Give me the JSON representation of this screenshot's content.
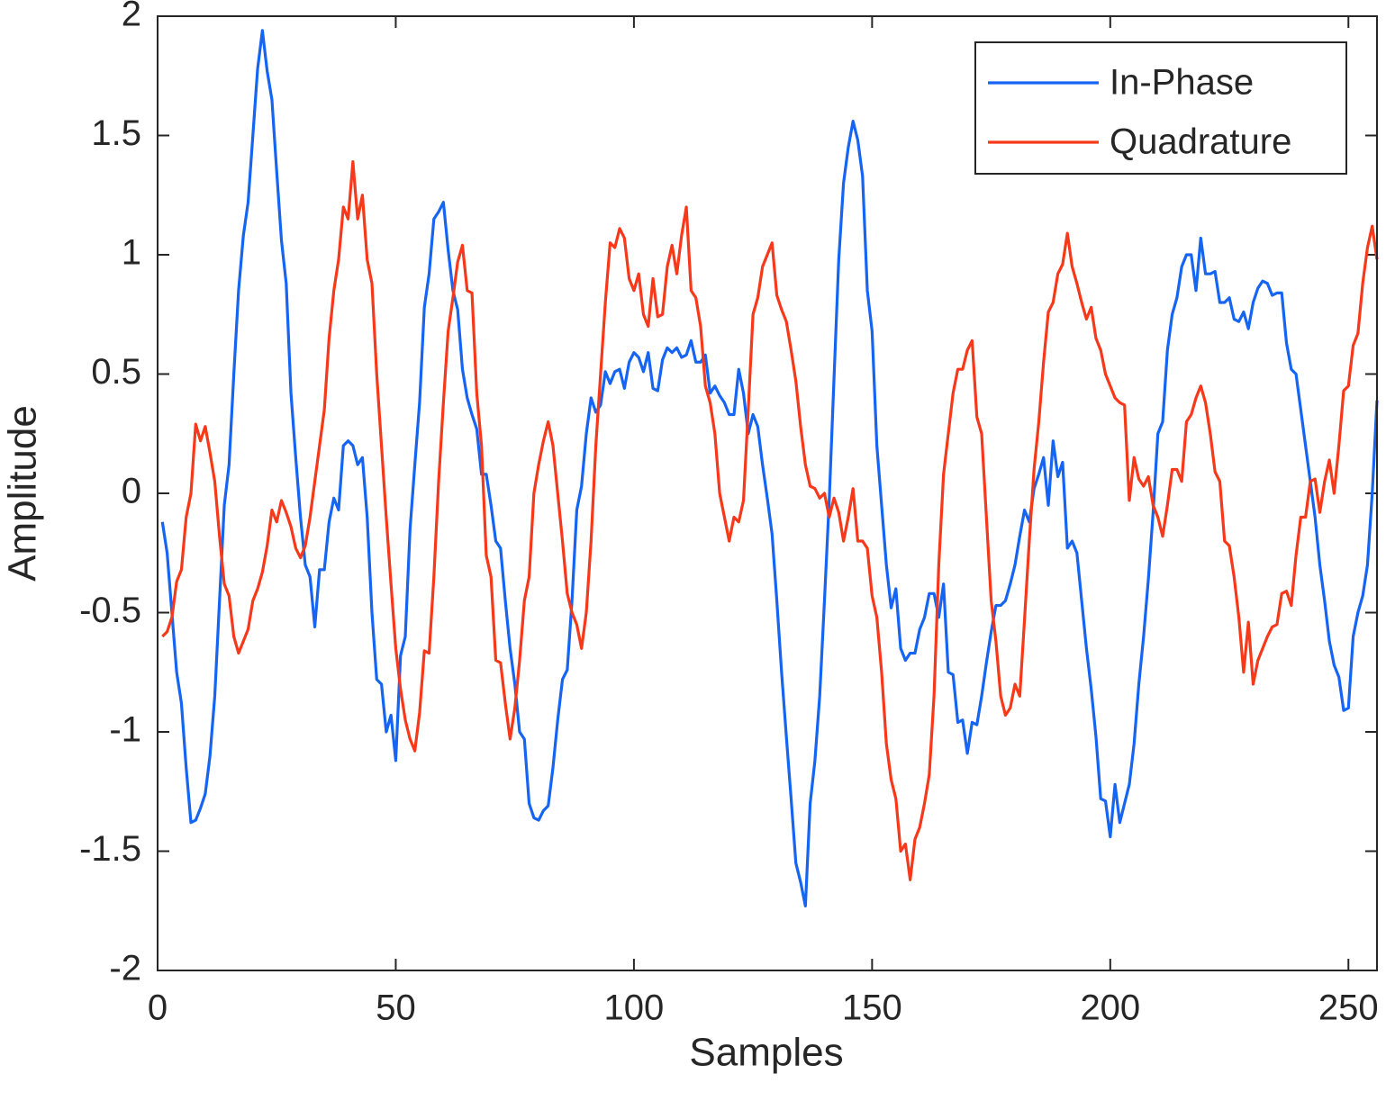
{
  "chart_data": {
    "type": "line",
    "xlabel": "Samples",
    "ylabel": "Amplitude",
    "legend": "northeast",
    "box": true,
    "xlim": [
      0,
      256
    ],
    "ylim": [
      -2,
      2
    ],
    "xticks": [
      0,
      50,
      100,
      150,
      200,
      250
    ],
    "yticks": [
      -2,
      -1.5,
      -1,
      -0.5,
      0,
      0.5,
      1,
      1.5,
      2
    ],
    "x": [
      1,
      2,
      3,
      4,
      5,
      6,
      7,
      8,
      9,
      10,
      11,
      12,
      13,
      14,
      15,
      16,
      17,
      18,
      19,
      20,
      21,
      22,
      23,
      24,
      25,
      26,
      27,
      28,
      29,
      30,
      31,
      32,
      33,
      34,
      35,
      36,
      37,
      38,
      39,
      40,
      41,
      42,
      43,
      44,
      45,
      46,
      47,
      48,
      49,
      50,
      51,
      52,
      53,
      54,
      55,
      56,
      57,
      58,
      59,
      60,
      61,
      62,
      63,
      64,
      65,
      66,
      67,
      68,
      69,
      70,
      71,
      72,
      73,
      74,
      75,
      76,
      77,
      78,
      79,
      80,
      81,
      82,
      83,
      84,
      85,
      86,
      87,
      88,
      89,
      90,
      91,
      92,
      93,
      94,
      95,
      96,
      97,
      98,
      99,
      100,
      101,
      102,
      103,
      104,
      105,
      106,
      107,
      108,
      109,
      110,
      111,
      112,
      113,
      114,
      115,
      116,
      117,
      118,
      119,
      120,
      121,
      122,
      123,
      124,
      125,
      126,
      127,
      128,
      129,
      130,
      131,
      132,
      133,
      134,
      135,
      136,
      137,
      138,
      139,
      140,
      141,
      142,
      143,
      144,
      145,
      146,
      147,
      148,
      149,
      150,
      151,
      152,
      153,
      154,
      155,
      156,
      157,
      158,
      159,
      160,
      161,
      162,
      163,
      164,
      165,
      166,
      167,
      168,
      169,
      170,
      171,
      172,
      173,
      174,
      175,
      176,
      177,
      178,
      179,
      180,
      181,
      182,
      183,
      184,
      185,
      186,
      187,
      188,
      189,
      190,
      191,
      192,
      193,
      194,
      195,
      196,
      197,
      198,
      199,
      200,
      201,
      202,
      203,
      204,
      205,
      206,
      207,
      208,
      209,
      210,
      211,
      212,
      213,
      214,
      215,
      216,
      217,
      218,
      219,
      220,
      221,
      222,
      223,
      224,
      225,
      226,
      227,
      228,
      229,
      230,
      231,
      232,
      233,
      234,
      235,
      236,
      237,
      238,
      239,
      240,
      241,
      242,
      243,
      244,
      245,
      246,
      247,
      248,
      249,
      250,
      251,
      252,
      253,
      254,
      255,
      256
    ],
    "series": [
      {
        "name": "In-Phase",
        "color": "#1664f2",
        "values": [
          -0.12,
          -0.25,
          -0.5,
          -0.75,
          -0.88,
          -1.15,
          -1.38,
          -1.37,
          -1.32,
          -1.26,
          -1.1,
          -0.85,
          -0.45,
          -0.05,
          0.12,
          0.5,
          0.85,
          1.08,
          1.22,
          1.5,
          1.78,
          1.94,
          1.77,
          1.65,
          1.35,
          1.06,
          0.88,
          0.42,
          0.15,
          -0.1,
          -0.3,
          -0.35,
          -0.56,
          -0.32,
          -0.32,
          -0.12,
          -0.02,
          -0.07,
          0.2,
          0.22,
          0.2,
          0.12,
          0.15,
          -0.1,
          -0.5,
          -0.78,
          -0.8,
          -1.0,
          -0.93,
          -1.12,
          -0.68,
          -0.6,
          -0.15,
          0.12,
          0.38,
          0.78,
          0.92,
          1.15,
          1.18,
          1.22,
          1.02,
          0.85,
          0.77,
          0.52,
          0.4,
          0.33,
          0.27,
          0.08,
          0.08,
          -0.05,
          -0.2,
          -0.23,
          -0.45,
          -0.65,
          -0.8,
          -1.0,
          -1.03,
          -1.3,
          -1.36,
          -1.37,
          -1.33,
          -1.31,
          -1.15,
          -0.95,
          -0.78,
          -0.74,
          -0.45,
          -0.07,
          0.03,
          0.25,
          0.4,
          0.34,
          0.37,
          0.51,
          0.46,
          0.51,
          0.52,
          0.44,
          0.55,
          0.59,
          0.57,
          0.51,
          0.59,
          0.44,
          0.43,
          0.56,
          0.61,
          0.59,
          0.61,
          0.57,
          0.58,
          0.64,
          0.55,
          0.55,
          0.58,
          0.42,
          0.45,
          0.41,
          0.38,
          0.33,
          0.33,
          0.52,
          0.42,
          0.25,
          0.33,
          0.28,
          0.12,
          -0.02,
          -0.17,
          -0.45,
          -0.75,
          -1.02,
          -1.28,
          -1.55,
          -1.63,
          -1.73,
          -1.3,
          -1.12,
          -0.85,
          -0.45,
          -0.03,
          0.48,
          0.98,
          1.3,
          1.45,
          1.56,
          1.48,
          1.33,
          0.85,
          0.68,
          0.2,
          -0.05,
          -0.3,
          -0.48,
          -0.4,
          -0.65,
          -0.7,
          -0.67,
          -0.67,
          -0.57,
          -0.52,
          -0.42,
          -0.42,
          -0.52,
          -0.38,
          -0.75,
          -0.76,
          -0.96,
          -0.95,
          -1.09,
          -0.96,
          -0.97,
          -0.85,
          -0.71,
          -0.58,
          -0.47,
          -0.47,
          -0.45,
          -0.38,
          -0.3,
          -0.18,
          -0.07,
          -0.12,
          0.02,
          0.08,
          0.15,
          -0.05,
          0.22,
          0.07,
          0.13,
          -0.23,
          -0.2,
          -0.25,
          -0.45,
          -0.65,
          -0.82,
          -1.02,
          -1.28,
          -1.29,
          -1.44,
          -1.22,
          -1.38,
          -1.3,
          -1.22,
          -1.05,
          -0.8,
          -0.6,
          -0.36,
          -0.08,
          0.25,
          0.3,
          0.6,
          0.75,
          0.82,
          0.95,
          1.0,
          1.0,
          0.85,
          1.07,
          0.92,
          0.92,
          0.93,
          0.8,
          0.8,
          0.82,
          0.73,
          0.72,
          0.76,
          0.69,
          0.8,
          0.86,
          0.89,
          0.88,
          0.83,
          0.84,
          0.84,
          0.63,
          0.52,
          0.5,
          0.35,
          0.2,
          0.05,
          -0.1,
          -0.3,
          -0.45,
          -0.62,
          -0.72,
          -0.77,
          -0.91,
          -0.9,
          -0.6,
          -0.5,
          -0.43,
          -0.3,
          0.0,
          0.39
        ]
      },
      {
        "name": "Quadrature",
        "color": "#f6391a",
        "values": [
          -0.6,
          -0.58,
          -0.52,
          -0.37,
          -0.32,
          -0.1,
          0.0,
          0.29,
          0.22,
          0.28,
          0.17,
          0.05,
          -0.18,
          -0.38,
          -0.43,
          -0.6,
          -0.67,
          -0.62,
          -0.57,
          -0.45,
          -0.4,
          -0.33,
          -0.22,
          -0.07,
          -0.12,
          -0.03,
          -0.08,
          -0.14,
          -0.23,
          -0.27,
          -0.22,
          -0.1,
          0.05,
          0.2,
          0.35,
          0.65,
          0.85,
          0.98,
          1.2,
          1.15,
          1.39,
          1.15,
          1.25,
          0.98,
          0.88,
          0.5,
          0.2,
          -0.1,
          -0.38,
          -0.65,
          -0.82,
          -0.95,
          -1.03,
          -1.08,
          -0.92,
          -0.66,
          -0.67,
          -0.35,
          0.05,
          0.38,
          0.68,
          0.82,
          0.97,
          1.04,
          0.85,
          0.84,
          0.42,
          0.2,
          -0.26,
          -0.35,
          -0.7,
          -0.71,
          -0.88,
          -1.03,
          -0.9,
          -0.7,
          -0.45,
          -0.35,
          0.0,
          0.12,
          0.22,
          0.3,
          0.2,
          0.0,
          -0.2,
          -0.42,
          -0.5,
          -0.55,
          -0.65,
          -0.5,
          -0.2,
          0.2,
          0.5,
          0.8,
          1.05,
          1.03,
          1.11,
          1.07,
          0.9,
          0.85,
          0.92,
          0.75,
          0.7,
          0.9,
          0.74,
          0.75,
          0.95,
          1.04,
          0.92,
          1.08,
          1.2,
          0.85,
          0.82,
          0.7,
          0.45,
          0.38,
          0.25,
          0.0,
          -0.1,
          -0.2,
          -0.1,
          -0.12,
          -0.03,
          0.35,
          0.75,
          0.82,
          0.95,
          1.0,
          1.05,
          0.83,
          0.77,
          0.72,
          0.6,
          0.47,
          0.28,
          0.12,
          0.03,
          0.02,
          -0.02,
          0.0,
          -0.1,
          -0.02,
          -0.08,
          -0.2,
          -0.1,
          0.02,
          -0.2,
          -0.2,
          -0.23,
          -0.43,
          -0.52,
          -0.75,
          -1.05,
          -1.2,
          -1.28,
          -1.5,
          -1.47,
          -1.62,
          -1.45,
          -1.4,
          -1.3,
          -1.18,
          -0.85,
          -0.3,
          0.08,
          0.25,
          0.42,
          0.52,
          0.52,
          0.6,
          0.64,
          0.32,
          0.25,
          -0.1,
          -0.45,
          -0.62,
          -0.85,
          -0.93,
          -0.9,
          -0.8,
          -0.85,
          -0.53,
          -0.2,
          0.1,
          0.3,
          0.55,
          0.76,
          0.8,
          0.92,
          0.96,
          1.09,
          0.95,
          0.88,
          0.8,
          0.73,
          0.78,
          0.65,
          0.6,
          0.5,
          0.45,
          0.4,
          0.38,
          0.37,
          -0.03,
          0.15,
          0.06,
          0.03,
          0.07,
          -0.05,
          -0.1,
          -0.18,
          -0.05,
          0.1,
          0.1,
          0.05,
          0.3,
          0.33,
          0.4,
          0.45,
          0.38,
          0.25,
          0.09,
          0.05,
          -0.2,
          -0.22,
          -0.35,
          -0.52,
          -0.75,
          -0.54,
          -0.8,
          -0.7,
          -0.65,
          -0.6,
          -0.56,
          -0.55,
          -0.42,
          -0.41,
          -0.47,
          -0.26,
          -0.1,
          -0.1,
          0.05,
          0.06,
          -0.08,
          0.05,
          0.14,
          0.0,
          0.2,
          0.43,
          0.45,
          0.62,
          0.67,
          0.88,
          1.03,
          1.12,
          0.98
        ]
      }
    ]
  }
}
